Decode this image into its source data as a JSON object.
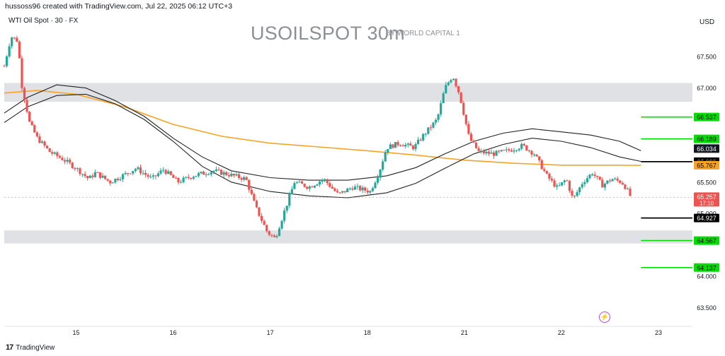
{
  "header": {
    "credit": "hussoss96 created with TradingView.com, Jul 22, 2025 06:12 UTC+3",
    "symbol": "WTI Oil Spot · 30 · FX",
    "title": "USOILSPOT 30m",
    "subtitle": "BY WORLD CAPITAL 1",
    "currency": "USD"
  },
  "footer": {
    "brand": "TradingView",
    "logo": "17"
  },
  "icons": {
    "alert": "lightning-bolt-icon"
  },
  "colors": {
    "bull": "#26a69a",
    "bear": "#ef5350",
    "ma_slow": "#f7a325",
    "zone": "#dfe1e5",
    "level_green": "#00dd00",
    "level_black": "#000000"
  },
  "chart_data": {
    "type": "candlestick",
    "title": "USOILSPOT 30m",
    "ylim": [
      63.2,
      68.2
    ],
    "y_ticks": [
      "67.500",
      "67.000",
      "65.500",
      "64.000",
      "63.500"
    ],
    "x_ticks": [
      "15",
      "16",
      "17",
      "18",
      "21",
      "22",
      "23"
    ],
    "x_ticks_pos": [
      1,
      2,
      3,
      4,
      5,
      6,
      7
    ],
    "x_range": [
      0.26,
      7.35
    ],
    "current_price": {
      "label": "65.257",
      "sub": "17:10",
      "value": 65.257
    },
    "zones": [
      {
        "from": 66.78,
        "to": 67.08
      },
      {
        "from": 64.52,
        "to": 64.73
      }
    ],
    "levels": [
      {
        "value": 66.537,
        "label": "66.537",
        "color": "green",
        "x_from": 6.82
      },
      {
        "value": 66.189,
        "label": "66.189",
        "color": "green",
        "x_from": 6.82
      },
      {
        "value": 65.825,
        "label": "65.825",
        "color": "black",
        "x_from": 6.82
      },
      {
        "value": 64.927,
        "label": "64.927",
        "color": "black",
        "x_from": 6.82
      },
      {
        "value": 64.567,
        "label": "64.567",
        "color": "green",
        "x_from": 6.82
      },
      {
        "value": 64.137,
        "label": "64.137",
        "color": "green",
        "x_from": 6.82
      }
    ],
    "price_tags": [
      {
        "label": "66.034",
        "value": 66.034,
        "style": "dark"
      },
      {
        "label": "65.830",
        "value": 65.83,
        "style": "plain"
      },
      {
        "label": "65.767",
        "value": 65.767,
        "style": "orange"
      },
      {
        "label": "65.000",
        "value": 65.0,
        "style": "plain"
      }
    ],
    "series": [
      {
        "name": "",
        "type": "candles",
        "anchors": [
          [
            0.26,
            67.35
          ],
          [
            0.33,
            67.82
          ],
          [
            0.4,
            67.75
          ],
          [
            0.44,
            67.05
          ],
          [
            0.52,
            66.45
          ],
          [
            0.6,
            66.2
          ],
          [
            0.73,
            65.98
          ],
          [
            0.88,
            65.85
          ],
          [
            1.0,
            65.72
          ],
          [
            1.13,
            65.55
          ],
          [
            1.2,
            65.65
          ],
          [
            1.35,
            65.5
          ],
          [
            1.5,
            65.62
          ],
          [
            1.62,
            65.72
          ],
          [
            1.78,
            65.55
          ],
          [
            1.9,
            65.7
          ],
          [
            2.05,
            65.5
          ],
          [
            2.2,
            65.6
          ],
          [
            2.42,
            65.68
          ],
          [
            2.75,
            65.55
          ],
          [
            2.85,
            65.1
          ],
          [
            2.97,
            64.7
          ],
          [
            3.05,
            64.6
          ],
          [
            3.15,
            65.05
          ],
          [
            3.25,
            65.5
          ],
          [
            3.4,
            65.42
          ],
          [
            3.55,
            65.55
          ],
          [
            3.7,
            65.3
          ],
          [
            3.85,
            65.42
          ],
          [
            4.03,
            65.35
          ],
          [
            4.12,
            65.65
          ],
          [
            4.2,
            66.05
          ],
          [
            4.33,
            66.12
          ],
          [
            4.48,
            66.05
          ],
          [
            4.58,
            66.25
          ],
          [
            4.72,
            66.5
          ],
          [
            4.8,
            67.0
          ],
          [
            4.88,
            67.2
          ],
          [
            4.95,
            66.9
          ],
          [
            5.05,
            66.2
          ],
          [
            5.15,
            65.98
          ],
          [
            5.3,
            65.95
          ],
          [
            5.45,
            66.0
          ],
          [
            5.6,
            66.08
          ],
          [
            5.72,
            65.95
          ],
          [
            5.85,
            65.6
          ],
          [
            5.96,
            65.4
          ],
          [
            6.05,
            65.55
          ],
          [
            6.12,
            65.22
          ],
          [
            6.22,
            65.5
          ],
          [
            6.32,
            65.65
          ],
          [
            6.42,
            65.45
          ],
          [
            6.52,
            65.55
          ],
          [
            6.62,
            65.5
          ],
          [
            6.66,
            65.42
          ],
          [
            6.72,
            65.25
          ]
        ]
      },
      {
        "name": "",
        "type": "ma",
        "color": "#f7a325",
        "points": [
          [
            0.26,
            66.92
          ],
          [
            0.6,
            66.96
          ],
          [
            1.0,
            66.9
          ],
          [
            1.5,
            66.7
          ],
          [
            2.0,
            66.42
          ],
          [
            2.5,
            66.23
          ],
          [
            3.0,
            66.12
          ],
          [
            3.5,
            66.06
          ],
          [
            4.0,
            66.0
          ],
          [
            4.5,
            65.93
          ],
          [
            5.0,
            65.85
          ],
          [
            5.5,
            65.8
          ],
          [
            6.0,
            65.77
          ],
          [
            6.5,
            65.77
          ],
          [
            6.82,
            65.767
          ]
        ]
      },
      {
        "name": "",
        "type": "ma",
        "color": "#222222",
        "points": [
          [
            0.26,
            66.6
          ],
          [
            0.5,
            66.85
          ],
          [
            0.8,
            67.05
          ],
          [
            1.1,
            67.0
          ],
          [
            1.4,
            66.8
          ],
          [
            1.7,
            66.55
          ],
          [
            2.0,
            66.2
          ],
          [
            2.3,
            65.9
          ],
          [
            2.6,
            65.68
          ],
          [
            3.0,
            65.57
          ],
          [
            3.4,
            65.53
          ],
          [
            3.8,
            65.53
          ],
          [
            4.2,
            65.6
          ],
          [
            4.5,
            65.73
          ],
          [
            4.8,
            65.95
          ],
          [
            5.1,
            66.15
          ],
          [
            5.4,
            66.28
          ],
          [
            5.7,
            66.35
          ],
          [
            6.0,
            66.3
          ],
          [
            6.3,
            66.25
          ],
          [
            6.6,
            66.15
          ],
          [
            6.82,
            66.0
          ]
        ]
      },
      {
        "name": "",
        "type": "ma",
        "color": "#222222",
        "points": [
          [
            0.26,
            66.45
          ],
          [
            0.5,
            66.7
          ],
          [
            0.8,
            66.88
          ],
          [
            1.1,
            66.9
          ],
          [
            1.4,
            66.75
          ],
          [
            1.7,
            66.5
          ],
          [
            2.0,
            66.15
          ],
          [
            2.3,
            65.75
          ],
          [
            2.6,
            65.5
          ],
          [
            3.0,
            65.35
          ],
          [
            3.4,
            65.28
          ],
          [
            3.8,
            65.25
          ],
          [
            4.2,
            65.33
          ],
          [
            4.5,
            65.48
          ],
          [
            4.8,
            65.72
          ],
          [
            5.1,
            65.95
          ],
          [
            5.4,
            66.1
          ],
          [
            5.7,
            66.2
          ],
          [
            6.0,
            66.15
          ],
          [
            6.3,
            66.05
          ],
          [
            6.6,
            65.9
          ],
          [
            6.82,
            65.83
          ]
        ]
      }
    ]
  }
}
